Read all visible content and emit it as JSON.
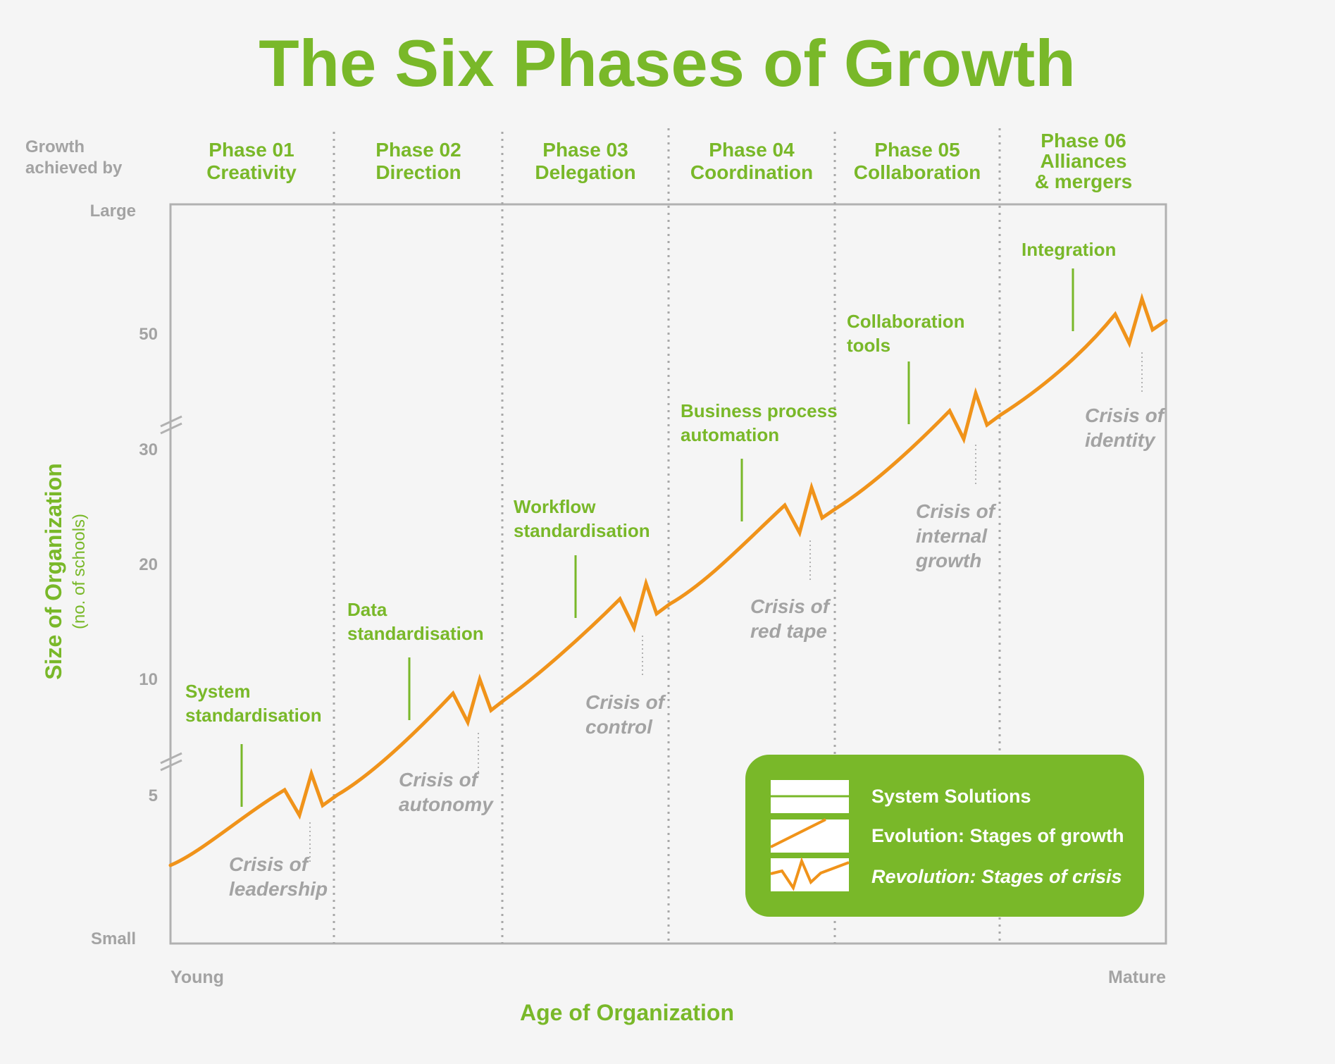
{
  "title": "The Six Phases of Growth",
  "growth_label": [
    "Growth",
    "achieved by"
  ],
  "colors": {
    "green": "#79b829",
    "orange": "#f0931a",
    "gray_text": "#a3a3a3",
    "axis": "#b1b1b1",
    "background": "#f5f5f5",
    "legend_text": "#ffffff"
  },
  "phases": [
    {
      "lines": [
        "Phase 01",
        "Creativity"
      ],
      "solution": [
        "System",
        "standardisation"
      ],
      "crisis": [
        "Crisis of",
        "leadership"
      ]
    },
    {
      "lines": [
        "Phase 02",
        "Direction"
      ],
      "solution": [
        "Data",
        "standardisation"
      ],
      "crisis": [
        "Crisis of",
        "autonomy"
      ]
    },
    {
      "lines": [
        "Phase 03",
        "Delegation"
      ],
      "solution": [
        "Workflow",
        "standardisation"
      ],
      "crisis": [
        "Crisis of",
        "control"
      ]
    },
    {
      "lines": [
        "Phase 04",
        "Coordination"
      ],
      "solution": [
        "Business process",
        "automation"
      ],
      "crisis": [
        "Crisis of",
        "red tape"
      ]
    },
    {
      "lines": [
        "Phase 05",
        "Collaboration"
      ],
      "solution": [
        "Collaboration",
        "tools"
      ],
      "crisis": [
        "Crisis of",
        "internal",
        "growth"
      ]
    },
    {
      "lines": [
        "Phase 06",
        "Alliances",
        "& mergers"
      ],
      "solution": [
        "Integration"
      ],
      "crisis": [
        "Crisis of",
        "identity"
      ]
    }
  ],
  "y_axis": {
    "label": "Size of Organization",
    "sublabel": "(no. of schools)",
    "ticks": [
      "Large",
      "50",
      "30",
      "20",
      "10",
      "5",
      "Small"
    ]
  },
  "x_axis": {
    "label": "Age of Organization",
    "ticks": [
      "Young",
      "Mature"
    ]
  },
  "legend": [
    {
      "icon": "system-solutions-swatch",
      "label": "System Solutions",
      "italic": false
    },
    {
      "icon": "evolution-swatch",
      "label": "Evolution: Stages of growth",
      "italic": false
    },
    {
      "icon": "revolution-swatch",
      "label": "Revolution: Stages of crisis",
      "italic": true
    }
  ]
}
